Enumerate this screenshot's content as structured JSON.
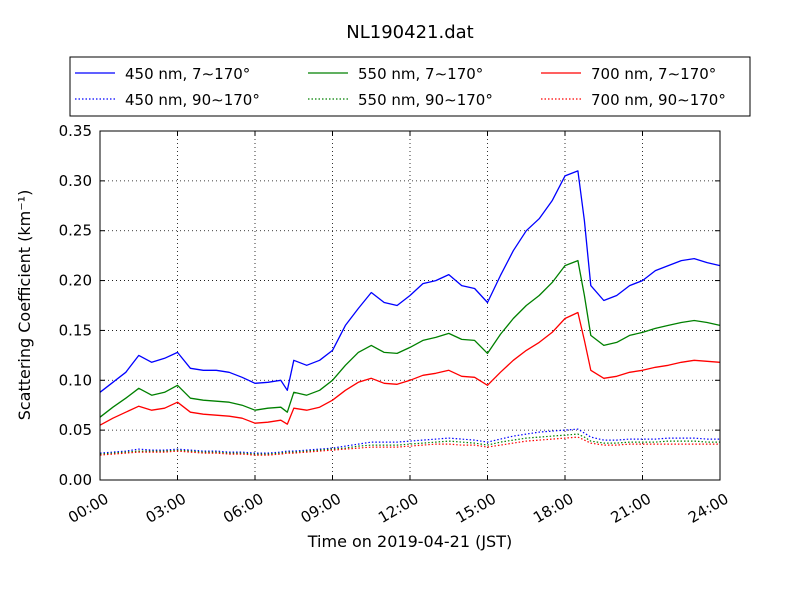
{
  "chart_data": {
    "type": "line",
    "title": "NL190421.dat",
    "xlabel": "Time on 2019-04-21 (JST)",
    "ylabel": "Scattering Coefficient (km⁻¹)",
    "x_unit": "time of day",
    "xlim": [
      "00:00",
      "24:00"
    ],
    "ylim": [
      0.0,
      0.35
    ],
    "xticks": [
      "00:00",
      "03:00",
      "06:00",
      "09:00",
      "12:00",
      "15:00",
      "18:00",
      "21:00",
      "24:00"
    ],
    "yticks": [
      "0.00",
      "0.05",
      "0.10",
      "0.15",
      "0.20",
      "0.25",
      "0.30",
      "0.35"
    ],
    "grid": true,
    "legend_location": "top, above plot",
    "x": [
      "00:00",
      "00:30",
      "01:00",
      "01:30",
      "02:00",
      "02:30",
      "03:00",
      "03:30",
      "04:00",
      "04:30",
      "05:00",
      "05:30",
      "06:00",
      "06:30",
      "07:00",
      "07:15",
      "07:30",
      "08:00",
      "08:30",
      "09:00",
      "09:30",
      "10:00",
      "10:30",
      "11:00",
      "11:30",
      "12:00",
      "12:30",
      "13:00",
      "13:30",
      "14:00",
      "14:30",
      "15:00",
      "15:30",
      "16:00",
      "16:30",
      "17:00",
      "17:30",
      "18:00",
      "18:30",
      "18:45",
      "19:00",
      "19:30",
      "20:00",
      "20:30",
      "21:00",
      "21:30",
      "22:00",
      "22:30",
      "23:00",
      "23:30",
      "24:00"
    ],
    "series": [
      {
        "name": "450 nm, 7∼170°",
        "color": "#0000ff",
        "style": "solid",
        "values": [
          0.088,
          0.098,
          0.108,
          0.125,
          0.118,
          0.122,
          0.128,
          0.112,
          0.11,
          0.11,
          0.108,
          0.103,
          0.097,
          0.098,
          0.1,
          0.09,
          0.12,
          0.115,
          0.12,
          0.13,
          0.155,
          0.172,
          0.188,
          0.178,
          0.175,
          0.185,
          0.197,
          0.2,
          0.206,
          0.195,
          0.192,
          0.178,
          0.205,
          0.23,
          0.25,
          0.262,
          0.28,
          0.305,
          0.31,
          0.26,
          0.195,
          0.18,
          0.185,
          0.195,
          0.2,
          0.21,
          0.215,
          0.22,
          0.222,
          0.218,
          0.215
        ]
      },
      {
        "name": "450 nm, 90∼170°",
        "color": "#0000ff",
        "style": "dotted",
        "values": [
          0.027,
          0.028,
          0.029,
          0.031,
          0.03,
          0.03,
          0.031,
          0.03,
          0.029,
          0.029,
          0.028,
          0.028,
          0.027,
          0.027,
          0.028,
          0.029,
          0.029,
          0.03,
          0.031,
          0.032,
          0.034,
          0.036,
          0.038,
          0.038,
          0.038,
          0.039,
          0.04,
          0.041,
          0.042,
          0.041,
          0.04,
          0.038,
          0.041,
          0.044,
          0.046,
          0.048,
          0.049,
          0.05,
          0.051,
          0.047,
          0.043,
          0.04,
          0.04,
          0.041,
          0.041,
          0.041,
          0.042,
          0.042,
          0.042,
          0.041,
          0.041
        ]
      },
      {
        "name": "550 nm, 7∼170°",
        "color": "#008000",
        "style": "solid",
        "values": [
          0.063,
          0.073,
          0.082,
          0.092,
          0.085,
          0.088,
          0.095,
          0.082,
          0.08,
          0.079,
          0.078,
          0.075,
          0.07,
          0.072,
          0.073,
          0.068,
          0.088,
          0.085,
          0.09,
          0.1,
          0.115,
          0.128,
          0.135,
          0.128,
          0.127,
          0.133,
          0.14,
          0.143,
          0.147,
          0.141,
          0.14,
          0.127,
          0.146,
          0.162,
          0.175,
          0.185,
          0.198,
          0.215,
          0.22,
          0.185,
          0.145,
          0.135,
          0.138,
          0.145,
          0.148,
          0.152,
          0.155,
          0.158,
          0.16,
          0.158,
          0.155
        ]
      },
      {
        "name": "550 nm, 90∼170°",
        "color": "#008000",
        "style": "dotted",
        "values": [
          0.026,
          0.027,
          0.028,
          0.029,
          0.029,
          0.029,
          0.03,
          0.029,
          0.028,
          0.028,
          0.027,
          0.027,
          0.026,
          0.026,
          0.027,
          0.028,
          0.028,
          0.029,
          0.03,
          0.031,
          0.032,
          0.034,
          0.035,
          0.035,
          0.035,
          0.036,
          0.037,
          0.038,
          0.039,
          0.038,
          0.037,
          0.035,
          0.038,
          0.04,
          0.042,
          0.043,
          0.044,
          0.045,
          0.046,
          0.043,
          0.039,
          0.037,
          0.037,
          0.038,
          0.038,
          0.038,
          0.039,
          0.039,
          0.039,
          0.038,
          0.038
        ]
      },
      {
        "name": "700 nm, 7∼170°",
        "color": "#ff0000",
        "style": "solid",
        "values": [
          0.055,
          0.062,
          0.068,
          0.074,
          0.07,
          0.072,
          0.078,
          0.068,
          0.066,
          0.065,
          0.064,
          0.062,
          0.057,
          0.058,
          0.06,
          0.056,
          0.072,
          0.07,
          0.073,
          0.08,
          0.09,
          0.098,
          0.102,
          0.097,
          0.096,
          0.1,
          0.105,
          0.107,
          0.11,
          0.104,
          0.103,
          0.095,
          0.108,
          0.12,
          0.13,
          0.138,
          0.148,
          0.162,
          0.168,
          0.14,
          0.11,
          0.102,
          0.104,
          0.108,
          0.11,
          0.113,
          0.115,
          0.118,
          0.12,
          0.119,
          0.118
        ]
      },
      {
        "name": "700 nm, 90∼170°",
        "color": "#ff0000",
        "style": "dotted",
        "values": [
          0.025,
          0.026,
          0.027,
          0.028,
          0.028,
          0.028,
          0.029,
          0.028,
          0.027,
          0.027,
          0.026,
          0.026,
          0.025,
          0.025,
          0.026,
          0.027,
          0.027,
          0.028,
          0.029,
          0.03,
          0.031,
          0.032,
          0.033,
          0.033,
          0.033,
          0.034,
          0.035,
          0.036,
          0.036,
          0.035,
          0.035,
          0.033,
          0.035,
          0.037,
          0.039,
          0.04,
          0.041,
          0.042,
          0.043,
          0.04,
          0.037,
          0.035,
          0.035,
          0.036,
          0.036,
          0.036,
          0.036,
          0.036,
          0.036,
          0.036,
          0.036
        ]
      }
    ]
  }
}
